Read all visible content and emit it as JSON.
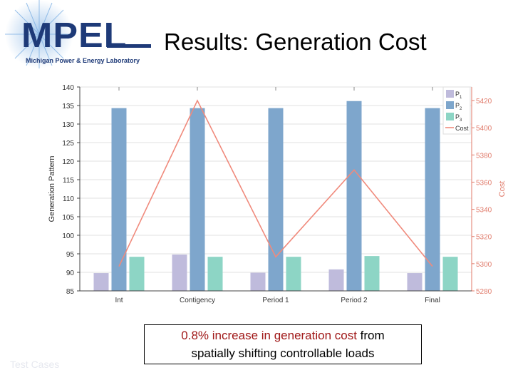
{
  "slide": {
    "title": "Results: Generation Cost",
    "logo": {
      "wordmark": "MPEL",
      "subtitle": "Michigan Power & Energy Laboratory"
    },
    "callout": {
      "highlight": "0.8% increase in generation cost",
      "rest_line1": " from",
      "line2": "spatially shifting controllable loads"
    },
    "footer_note": "Test Cases"
  },
  "colors": {
    "p1": "#bfbbdc",
    "p2": "#7ea6cc",
    "p3": "#8dd5c5",
    "cost": "#f08a7c",
    "axis": "#444444",
    "right_axis": "#e07a6a",
    "highlight_text": "#a01818"
  },
  "chart_data": {
    "type": "bar",
    "categories": [
      "Int",
      "Contigency",
      "Period 1",
      "Period 2",
      "Final"
    ],
    "ylabel": "Generation Pattern",
    "y2label": "Cost",
    "ylim": [
      85,
      140
    ],
    "yticks": [
      85,
      90,
      95,
      100,
      105,
      110,
      115,
      120,
      125,
      130,
      135,
      140
    ],
    "y2lim": [
      5280,
      5430
    ],
    "y2ticks": [
      5280,
      5300,
      5320,
      5340,
      5360,
      5380,
      5400,
      5420
    ],
    "grid": true,
    "legend": "top-right",
    "series": [
      {
        "name": "P1",
        "label": "P",
        "sub": "1",
        "values": [
          89.8,
          94.8,
          89.9,
          90.8,
          89.8
        ]
      },
      {
        "name": "P2",
        "label": "P",
        "sub": "2",
        "values": [
          134.3,
          134.3,
          134.3,
          136.2,
          134.3
        ]
      },
      {
        "name": "P3",
        "label": "P",
        "sub": "3",
        "values": [
          94.2,
          94.2,
          94.2,
          94.4,
          94.2
        ]
      }
    ],
    "line_series": {
      "name": "Cost",
      "axis": "right",
      "values": [
        5298,
        5420,
        5305,
        5369,
        5298
      ]
    }
  }
}
